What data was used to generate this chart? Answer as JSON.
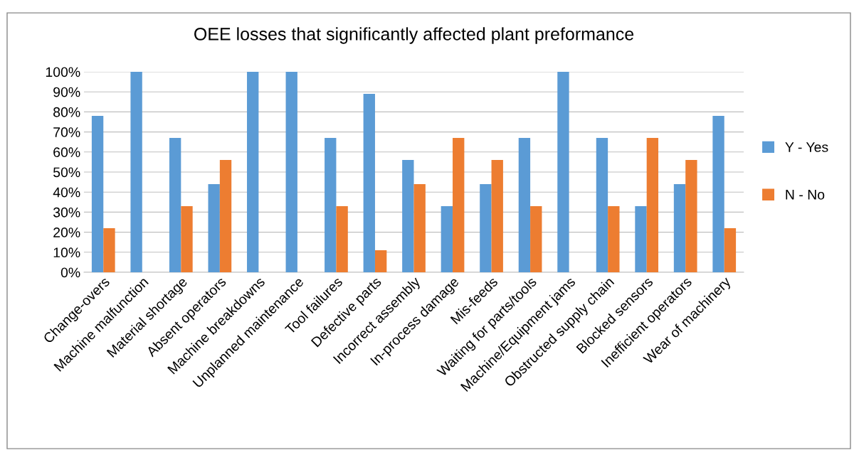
{
  "chart_data": {
    "type": "bar",
    "title": "OEE losses that significantly affected plant preformance",
    "categories": [
      "Change-overs",
      "Machine malfunction",
      "Material shortage",
      "Absent operators",
      "Machine breakdowns",
      "Unplanned maintenance",
      "Tool failures",
      "Defective parts",
      "Incorrect assembly",
      "In-process damage",
      "Mis-feeds",
      "Waiting for parts/tools",
      "Machine/Equipment jams",
      "Obstructed supply chain",
      "Blocked sensors",
      "Inefficient operators",
      "Wear of machinery"
    ],
    "series": [
      {
        "name": "Y - Yes",
        "color": "#5b9bd5",
        "values": [
          78,
          100,
          67,
          44,
          100,
          100,
          67,
          89,
          56,
          33,
          44,
          67,
          100,
          67,
          33,
          44,
          78
        ]
      },
      {
        "name": "N - No",
        "color": "#ed7d31",
        "values": [
          22,
          0,
          33,
          56,
          0,
          0,
          33,
          11,
          44,
          67,
          56,
          33,
          0,
          33,
          67,
          56,
          22
        ]
      }
    ],
    "ylim": [
      0,
      100
    ],
    "yticks": [
      {
        "value": 0,
        "label": "0%"
      },
      {
        "value": 10,
        "label": "10%"
      },
      {
        "value": 20,
        "label": "20%"
      },
      {
        "value": 30,
        "label": "30%"
      },
      {
        "value": 40,
        "label": "40%"
      },
      {
        "value": 50,
        "label": "50%"
      },
      {
        "value": 60,
        "label": "60%"
      },
      {
        "value": 70,
        "label": "70%"
      },
      {
        "value": 80,
        "label": "80%"
      },
      {
        "value": 90,
        "label": "90%"
      },
      {
        "value": 100,
        "label": "100%"
      }
    ],
    "grid": "y",
    "legend": "right"
  }
}
